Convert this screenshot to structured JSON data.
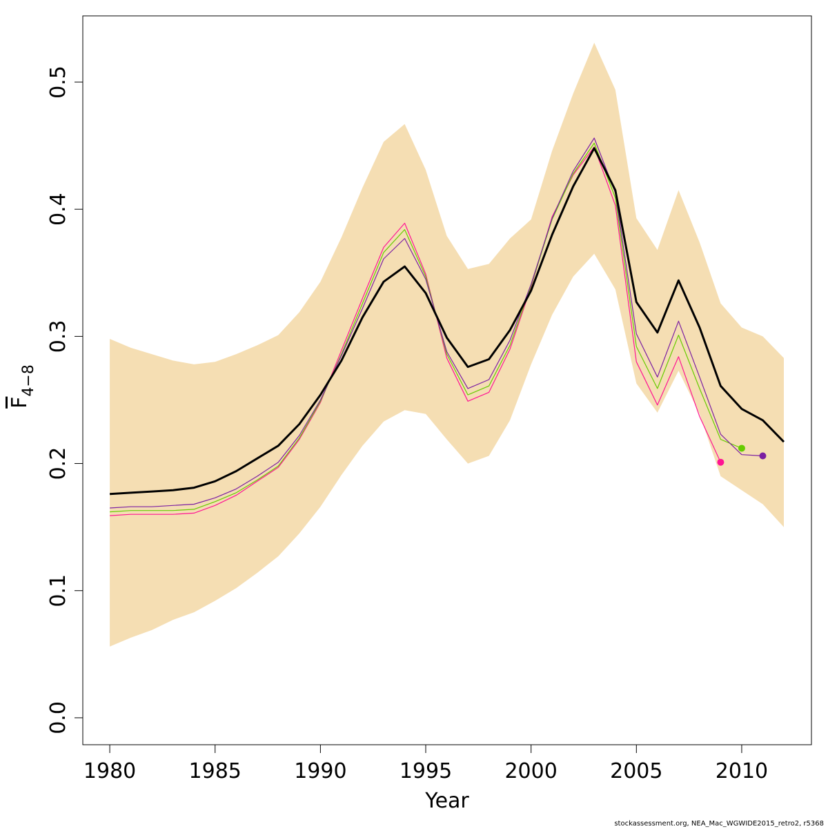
{
  "chart_data": {
    "type": "line",
    "xlabel": "Year",
    "ylabel": "F",
    "ylabel_subscript": "4−8",
    "footer": "stockassessment.org, NEA_Mac_WGWIDE2015_retro2, r5368",
    "x": [
      1980,
      1981,
      1982,
      1983,
      1984,
      1985,
      1986,
      1987,
      1988,
      1989,
      1990,
      1991,
      1992,
      1993,
      1994,
      1995,
      1996,
      1997,
      1998,
      1999,
      2000,
      2001,
      2002,
      2003,
      2004,
      2005,
      2006,
      2007,
      2008,
      2009,
      2010,
      2011,
      2012
    ],
    "xlim": [
      1978.72,
      2013.31
    ],
    "xticks": [
      1980,
      1985,
      1990,
      1995,
      2000,
      2005,
      2010
    ],
    "ylim": [
      -0.0212,
      0.5521
    ],
    "yticks": [
      {
        "value": 0,
        "label": "0.0"
      },
      0.1,
      0.2,
      0.3,
      0.4,
      0.5
    ],
    "band": {
      "color": "#f5deb3",
      "upper": [
        0.298,
        0.291,
        0.286,
        0.281,
        0.278,
        0.28,
        0.286,
        0.293,
        0.301,
        0.319,
        0.343,
        0.378,
        0.417,
        0.453,
        0.467,
        0.431,
        0.379,
        0.353,
        0.357,
        0.377,
        0.392,
        0.446,
        0.491,
        0.531,
        0.494,
        0.393,
        0.368,
        0.415,
        0.374,
        0.326,
        0.307,
        0.3,
        0.283
      ],
      "lower": [
        0.056,
        0.063,
        0.069,
        0.077,
        0.083,
        0.092,
        0.102,
        0.114,
        0.127,
        0.145,
        0.166,
        0.191,
        0.214,
        0.233,
        0.242,
        0.239,
        0.219,
        0.2,
        0.206,
        0.234,
        0.278,
        0.317,
        0.347,
        0.365,
        0.337,
        0.263,
        0.24,
        0.273,
        0.239,
        0.19,
        0.179,
        0.168,
        0.15
      ]
    },
    "series": [
      {
        "color": "#ff1493",
        "width": 1.2,
        "end_dot": true,
        "values": [
          0.159,
          0.16,
          0.16,
          0.16,
          0.161,
          0.167,
          0.175,
          0.186,
          0.197,
          0.219,
          0.248,
          0.289,
          0.33,
          0.37,
          0.389,
          0.349,
          0.283,
          0.249,
          0.256,
          0.29,
          0.339,
          0.394,
          0.427,
          0.449,
          0.403,
          0.28,
          0.246,
          0.284,
          0.237,
          0.201,
          null,
          null,
          null
        ]
      },
      {
        "color": "#66cc00",
        "width": 1.2,
        "end_dot": true,
        "values": [
          0.162,
          0.163,
          0.163,
          0.163,
          0.164,
          0.17,
          0.177,
          0.187,
          0.198,
          0.22,
          0.249,
          0.286,
          0.326,
          0.366,
          0.384,
          0.347,
          0.286,
          0.254,
          0.261,
          0.293,
          0.34,
          0.392,
          0.428,
          0.452,
          0.409,
          0.292,
          0.259,
          0.301,
          0.259,
          0.219,
          0.212,
          null,
          null
        ]
      },
      {
        "color": "#7b1fa2",
        "width": 1.2,
        "end_dot": true,
        "values": [
          0.165,
          0.166,
          0.166,
          0.167,
          0.168,
          0.173,
          0.18,
          0.19,
          0.201,
          0.222,
          0.25,
          0.285,
          0.322,
          0.361,
          0.377,
          0.345,
          0.288,
          0.259,
          0.266,
          0.297,
          0.341,
          0.393,
          0.43,
          0.456,
          0.413,
          0.302,
          0.268,
          0.312,
          0.268,
          0.223,
          0.207,
          0.206,
          null
        ]
      },
      {
        "color": "#000000",
        "width": 3,
        "end_dot": false,
        "values": [
          0.176,
          0.177,
          0.178,
          0.179,
          0.181,
          0.186,
          0.194,
          0.204,
          0.214,
          0.231,
          0.254,
          0.281,
          0.315,
          0.343,
          0.355,
          0.334,
          0.299,
          0.276,
          0.282,
          0.305,
          0.336,
          0.38,
          0.418,
          0.448,
          0.415,
          0.327,
          0.303,
          0.344,
          0.307,
          0.261,
          0.243,
          0.234,
          0.217
        ]
      }
    ]
  }
}
